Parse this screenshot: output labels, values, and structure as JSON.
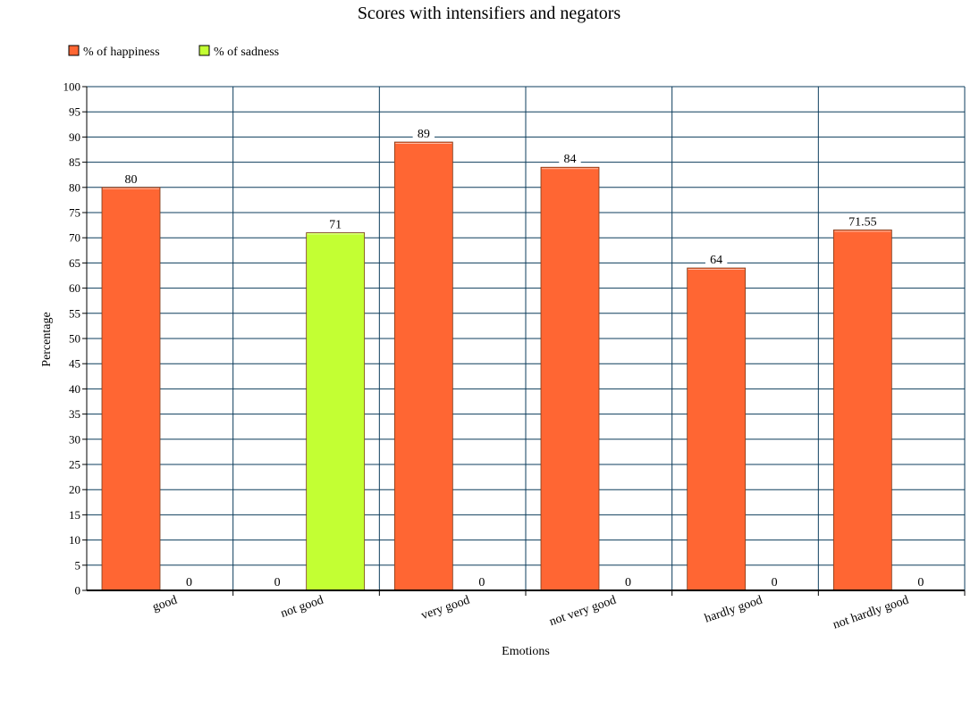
{
  "chart_data": {
    "type": "bar",
    "title": "Scores with intensifiers and negators",
    "xlabel": "Emotions",
    "ylabel": "Percentage",
    "categories": [
      "good",
      "not good",
      "very good",
      "not very good",
      "hardly good",
      "not hardly good"
    ],
    "series": [
      {
        "name": "% of happiness",
        "color": "#ff6633",
        "values": [
          80,
          0,
          89,
          84,
          64,
          71.55
        ],
        "labels": [
          "80",
          "0",
          "89",
          "84",
          "64",
          "71.55"
        ]
      },
      {
        "name": "% of sadness",
        "color": "#c3ff33",
        "values": [
          0,
          71,
          0,
          0,
          0,
          0
        ],
        "labels": [
          "0",
          "71",
          "0",
          "0",
          "0",
          "0"
        ]
      }
    ],
    "ylim": [
      0,
      100
    ],
    "yticks": [
      "0",
      "5",
      "10",
      "15",
      "20",
      "25",
      "30",
      "35",
      "40",
      "45",
      "50",
      "55",
      "60",
      "65",
      "70",
      "75",
      "80",
      "85",
      "90",
      "95",
      "100"
    ],
    "grid": true,
    "legend_position": "top-left",
    "gridline_color": "#0d3d5c"
  }
}
